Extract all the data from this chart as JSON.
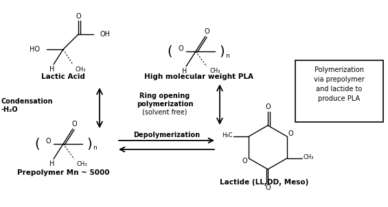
{
  "bg_color": "#ffffff",
  "fig_width": 5.65,
  "fig_height": 3.02,
  "dpi": 100,
  "box_text": "Polymerization\nvia prepolymer\nand lactide to\nproduce PLA",
  "lactic_acid_label": "Lactic Acid",
  "pla_label": "High molecular weight PLA",
  "prepolymer_label": "Prepolymer Mn ~ 5000",
  "lactide_label": "Lactide (LL,DD, Meso)",
  "condensation_label1": "Condensation",
  "condensation_label2": "-H₂O",
  "rop_label1": "Ring opening",
  "rop_label2": "polymerization",
  "rop_label3": "(solvent free)",
  "depoly_label": "Depolymerization"
}
